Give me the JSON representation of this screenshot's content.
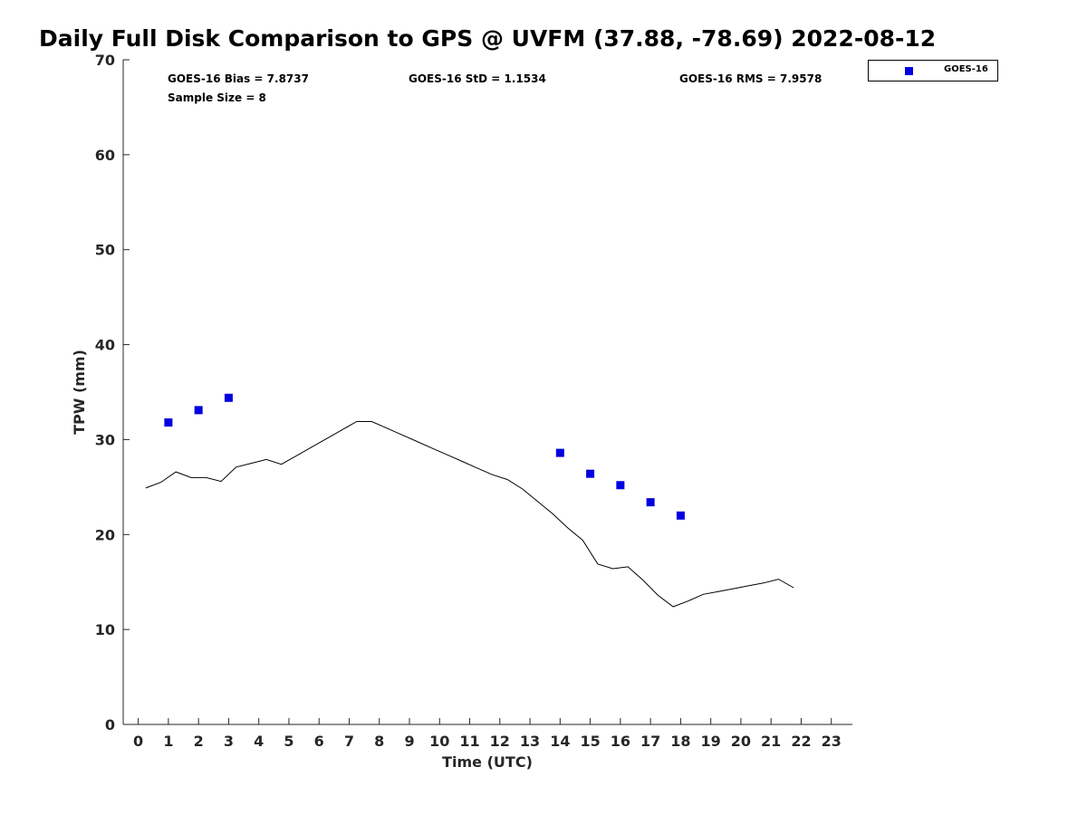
{
  "chart_data": {
    "type": "scatter",
    "title": "Daily Full Disk Comparison to GPS @ UVFM (37.88, -78.69) 2022-08-12",
    "xlabel": "Time (UTC)",
    "ylabel": "TPW (mm)",
    "xlim": [
      -0.5,
      23.7
    ],
    "ylim": [
      0,
      70
    ],
    "x_ticks": [
      0,
      1,
      2,
      3,
      4,
      5,
      6,
      7,
      8,
      9,
      10,
      11,
      12,
      13,
      14,
      15,
      16,
      17,
      18,
      19,
      20,
      21,
      22,
      23
    ],
    "y_ticks": [
      0,
      10,
      20,
      30,
      40,
      50,
      60,
      70
    ],
    "grid": false,
    "legend_position": "top-right, outside plot",
    "stats": {
      "bias": "GOES-16 Bias = 7.8737",
      "std": "GOES-16 StD = 1.1534",
      "rms": "GOES-16 RMS = 7.9578",
      "sample_size": "Sample Size = 8"
    },
    "series": [
      {
        "name": "GOES-16",
        "type": "scatter",
        "marker": "square",
        "color": "#0000e0",
        "x": [
          1,
          2,
          3,
          14,
          15,
          16,
          17,
          18
        ],
        "y": [
          31.8,
          33.1,
          34.4,
          28.6,
          26.4,
          25.2,
          23.4,
          22.0
        ]
      },
      {
        "type": "line",
        "color": "#000000",
        "x": [
          0.25,
          0.75,
          1.25,
          1.75,
          2.25,
          2.75,
          3.25,
          3.75,
          4.25,
          4.75,
          5.25,
          5.75,
          6.25,
          6.75,
          7.25,
          7.75,
          8.25,
          8.75,
          9.25,
          9.75,
          10.25,
          10.75,
          11.25,
          11.75,
          12.25,
          12.75,
          13.25,
          13.75,
          14.25,
          14.75,
          15.25,
          15.75,
          16.25,
          16.75,
          17.25,
          17.75,
          18.25,
          18.75,
          19.25,
          19.75,
          20.25,
          20.75,
          21.25,
          21.75
        ],
        "y": [
          24.9,
          25.5,
          26.6,
          26.0,
          26.0,
          25.6,
          27.1,
          27.5,
          27.9,
          27.4,
          28.3,
          29.2,
          30.1,
          31.0,
          31.9,
          31.9,
          31.2,
          30.5,
          29.8,
          29.1,
          28.4,
          27.7,
          27.0,
          26.3,
          25.8,
          24.8,
          23.5,
          22.2,
          20.7,
          19.4,
          16.9,
          16.4,
          16.6,
          15.2,
          13.6,
          12.4,
          13.0,
          13.7,
          14.0,
          14.3,
          14.6,
          14.9,
          15.3,
          14.4
        ]
      }
    ]
  }
}
